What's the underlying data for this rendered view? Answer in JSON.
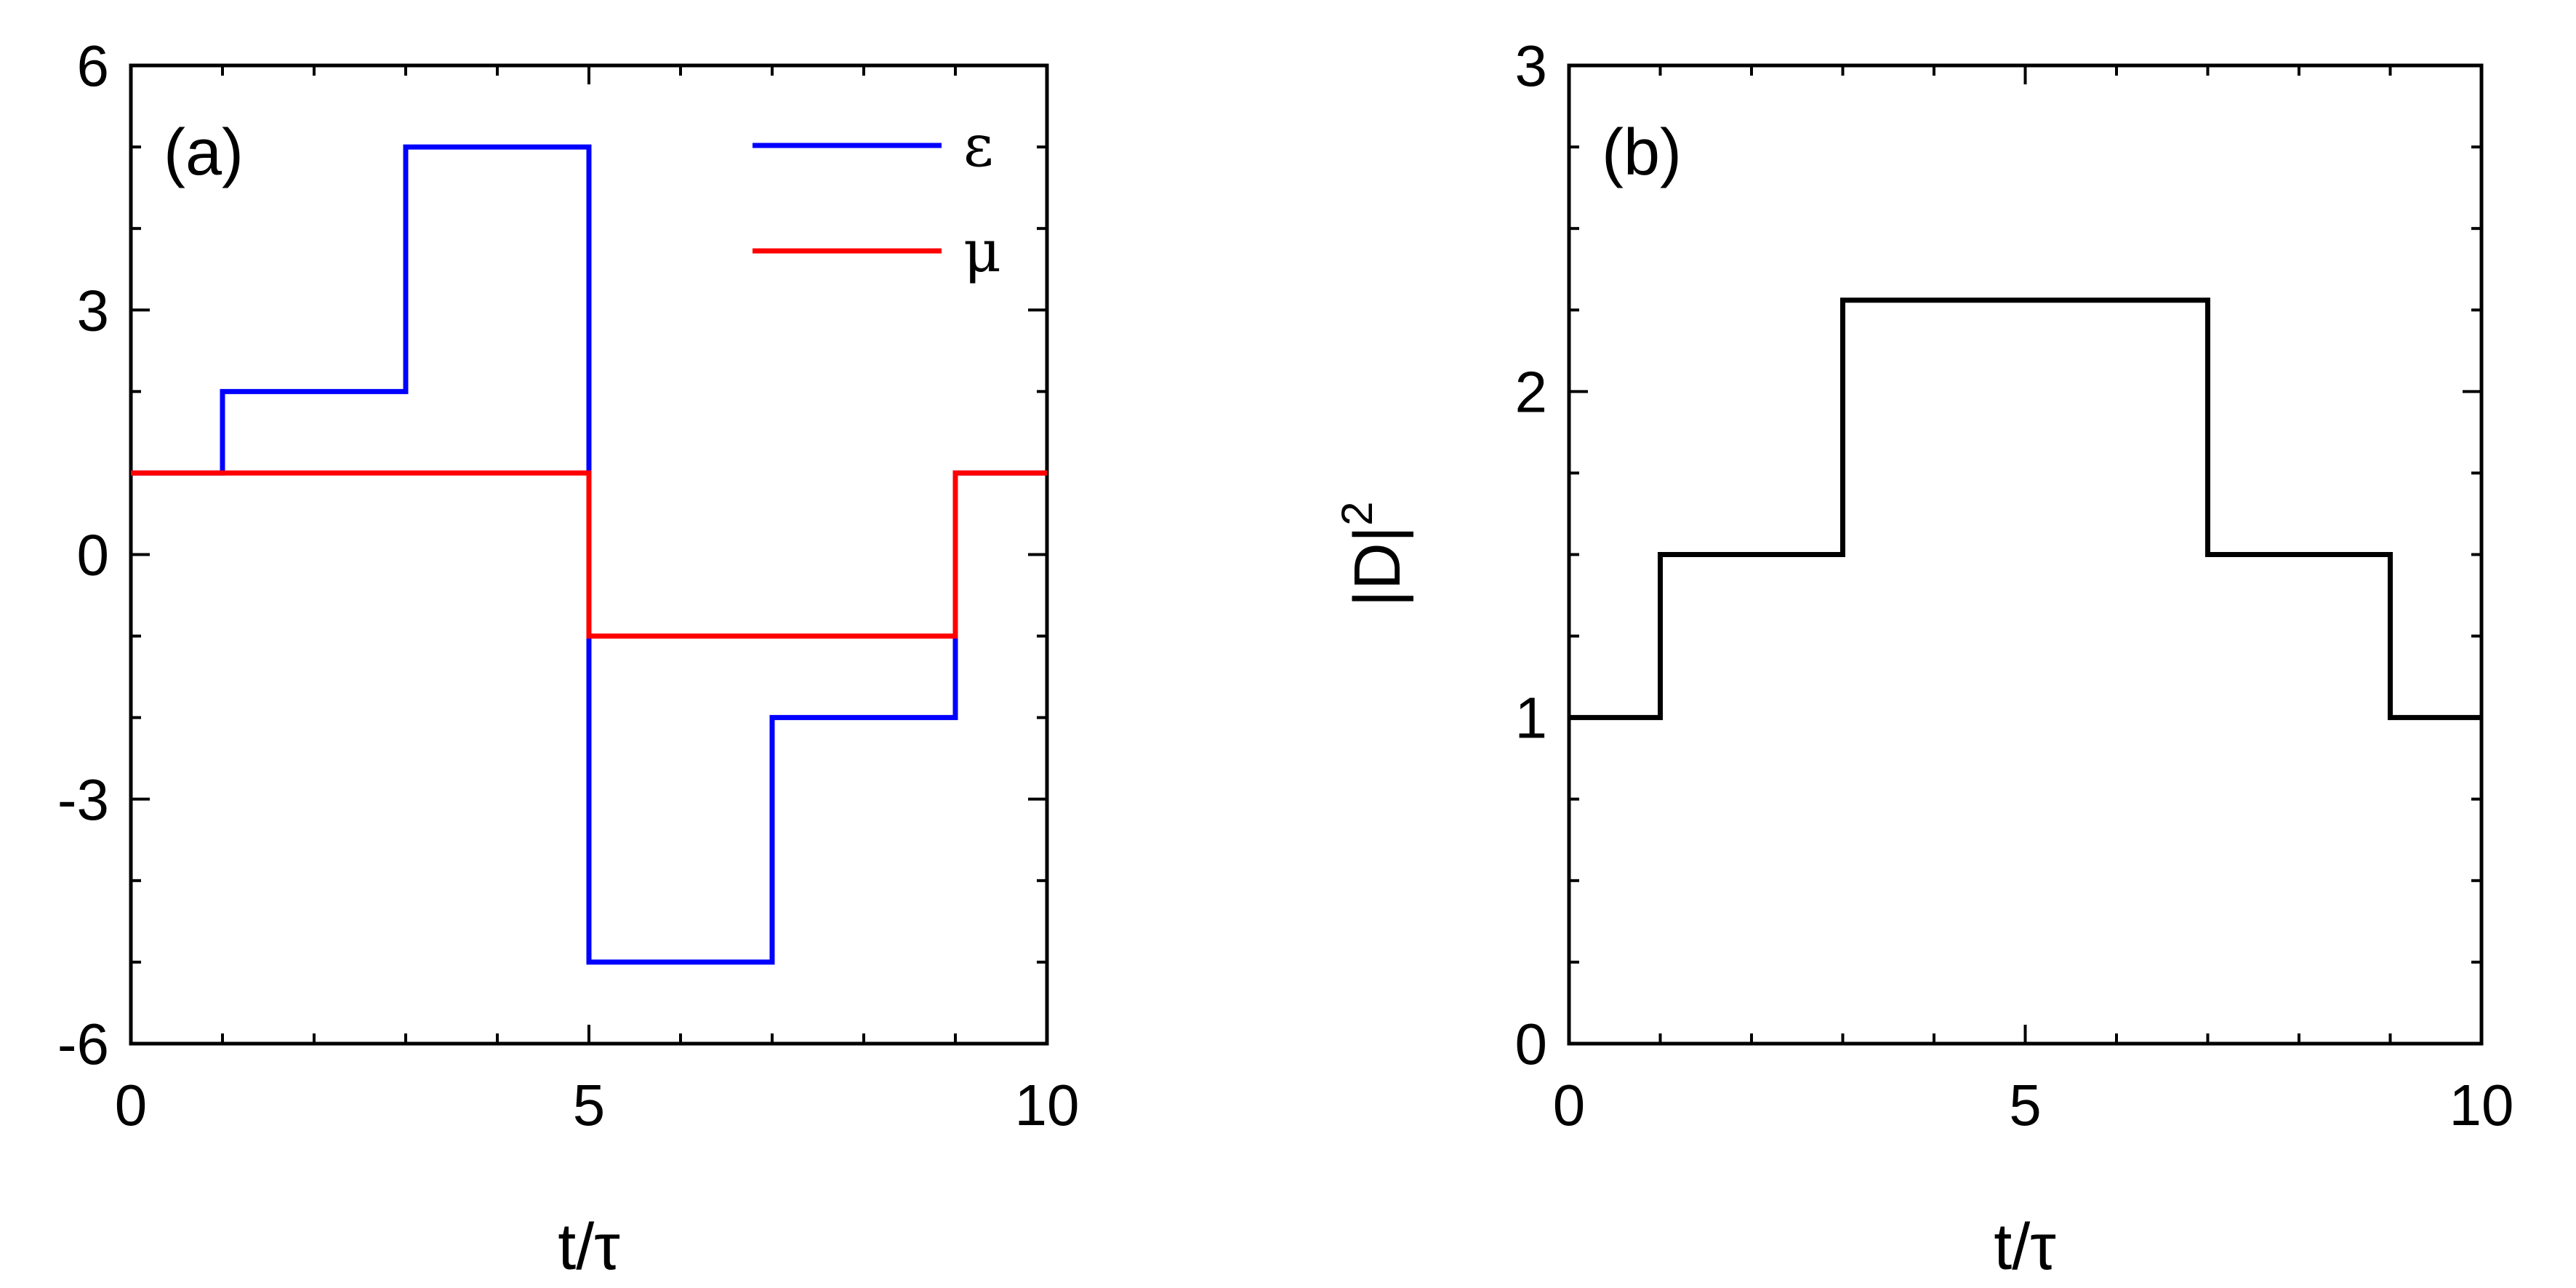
{
  "chart_data": [
    {
      "type": "line",
      "step": true,
      "panel_label": "(a)",
      "xlabel": "t/τ",
      "ylabel": "",
      "xlim": [
        0,
        10
      ],
      "ylim": [
        -6,
        6
      ],
      "xticks": [
        0,
        5,
        10
      ],
      "xtick_labels": [
        "0",
        "5",
        "10"
      ],
      "x_minor_step": 1,
      "yticks": [
        -6,
        -3,
        0,
        3,
        6
      ],
      "ytick_labels": [
        "-6",
        "-3",
        "0",
        "3",
        "6"
      ],
      "y_minor_step": 1,
      "grid": false,
      "legend_position": "top-right",
      "series": [
        {
          "name": "ε",
          "color": "#0000ff",
          "x": [
            0,
            1,
            3,
            5,
            7,
            9,
            10
          ],
          "y": [
            1,
            2,
            5,
            -5,
            -2,
            1,
            1
          ]
        },
        {
          "name": "μ",
          "color": "#ff0000",
          "x": [
            0,
            5,
            9,
            10
          ],
          "y": [
            1,
            -1,
            1,
            1
          ]
        }
      ]
    },
    {
      "type": "line",
      "step": true,
      "panel_label": "(b)",
      "xlabel": "t/τ",
      "ylabel": "|D|",
      "ylabel_superscript": "2",
      "xlim": [
        0,
        10
      ],
      "ylim": [
        0,
        3
      ],
      "xticks": [
        0,
        5,
        10
      ],
      "xtick_labels": [
        "0",
        "5",
        "10"
      ],
      "x_minor_step": 1,
      "yticks": [
        0,
        1,
        2,
        3
      ],
      "ytick_labels": [
        "0",
        "1",
        "2",
        "3"
      ],
      "y_minor_step": 0.25,
      "grid": false,
      "series": [
        {
          "name": "",
          "color": "#000000",
          "x": [
            0,
            1,
            3,
            7,
            9,
            10
          ],
          "y": [
            1,
            1.5,
            2.28,
            1.5,
            1,
            1
          ]
        }
      ]
    }
  ]
}
